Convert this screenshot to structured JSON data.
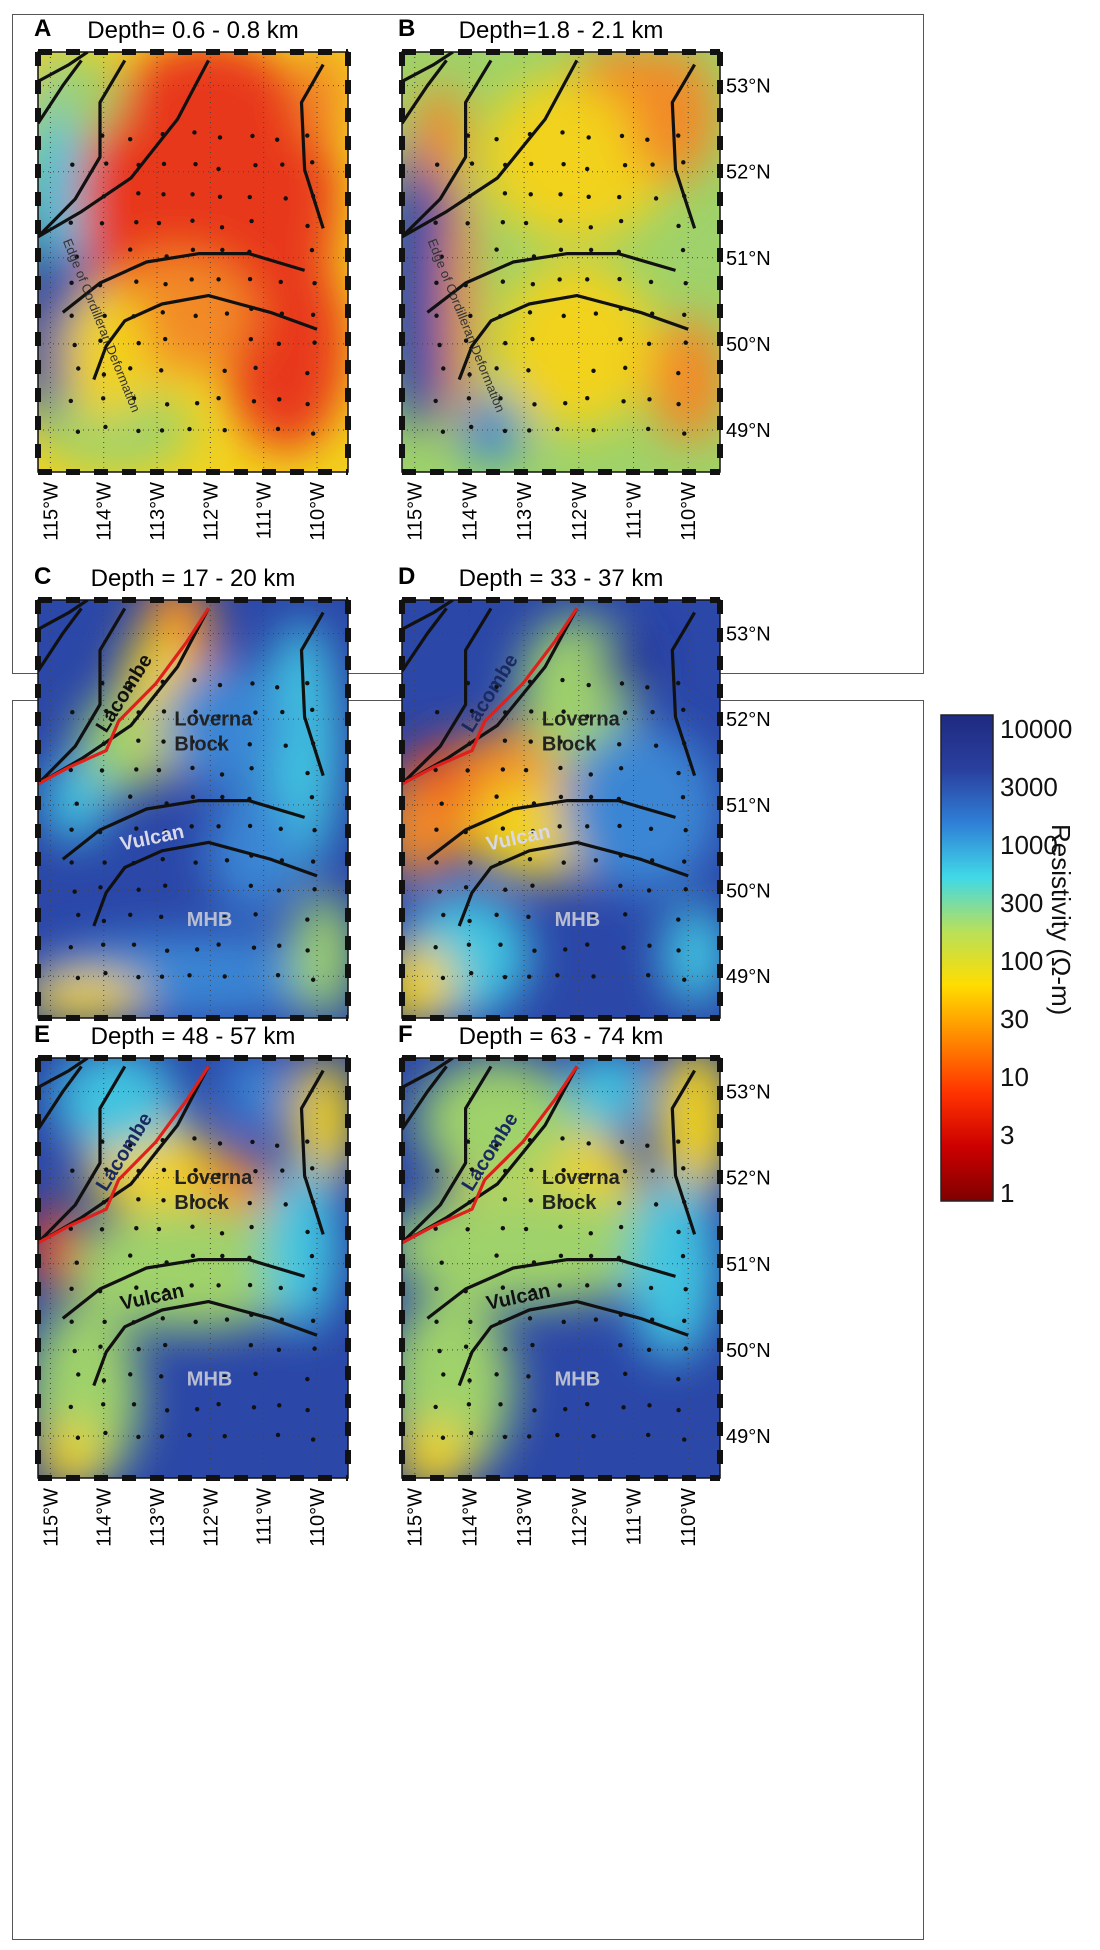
{
  "panels": [
    {
      "id": "A",
      "letter": "A",
      "title": "Depth= 0.6 - 0.8 km",
      "style": "shallow1",
      "annotations": [
        {
          "text": "Edge of Cordilleran Deformation",
          "kind": "edge"
        }
      ]
    },
    {
      "id": "B",
      "letter": "B",
      "title": "Depth=1.8 - 2.1 km",
      "style": "shallow2",
      "annotations": [
        {
          "text": "Edge of Cordilleran Deformation",
          "kind": "edge"
        }
      ]
    },
    {
      "id": "C",
      "letter": "C",
      "title": "Depth = 17 - 20 km",
      "style": "mid1",
      "annotations": [
        {
          "text": "Lacombe",
          "kind": "lacombe"
        },
        {
          "text": "Loverna",
          "kind": "loverna1"
        },
        {
          "text": "Block",
          "kind": "loverna2"
        },
        {
          "text": "Vulcan",
          "kind": "vulcan"
        },
        {
          "text": "MHB",
          "kind": "mhb"
        }
      ]
    },
    {
      "id": "D",
      "letter": "D",
      "title": "Depth = 33 - 37 km",
      "style": "mid2",
      "annotations": [
        {
          "text": "Lacombe",
          "kind": "lacombe"
        },
        {
          "text": "Loverna",
          "kind": "loverna1"
        },
        {
          "text": "Block",
          "kind": "loverna2"
        },
        {
          "text": "Vulcan",
          "kind": "vulcan"
        },
        {
          "text": "MHB",
          "kind": "mhb"
        }
      ]
    },
    {
      "id": "E",
      "letter": "E",
      "title": "Depth = 48 - 57 km",
      "style": "deep1",
      "annotations": [
        {
          "text": "Lacombe",
          "kind": "lacombe"
        },
        {
          "text": "Loverna",
          "kind": "loverna1"
        },
        {
          "text": "Block",
          "kind": "loverna2"
        },
        {
          "text": "Vulcan",
          "kind": "vulcan"
        },
        {
          "text": "MHB",
          "kind": "mhb"
        }
      ]
    },
    {
      "id": "F",
      "letter": "F",
      "title": "Depth = 63 - 74 km",
      "style": "deep2",
      "annotations": [
        {
          "text": "Lacombe",
          "kind": "lacombe"
        },
        {
          "text": "Loverna",
          "kind": "loverna1"
        },
        {
          "text": "Block",
          "kind": "loverna2"
        },
        {
          "text": "Vulcan",
          "kind": "vulcan"
        },
        {
          "text": "MHB",
          "kind": "mhb"
        }
      ]
    }
  ],
  "lat_ticks": [
    "53°N",
    "52°N",
    "51°N",
    "50°N",
    "49°N"
  ],
  "lon_ticks": [
    "115°W",
    "114°W",
    "113°W",
    "112°W",
    "111°W",
    "110°W"
  ],
  "colorbar": {
    "title": "Resistivity (Ω-m)",
    "labels": [
      "10000",
      "3000",
      "1000",
      "300",
      "100",
      "30",
      "10",
      "3",
      "1"
    ],
    "colors": [
      "#7f0000",
      "#cc0000",
      "#ff3300",
      "#ff8800",
      "#ffdd00",
      "#b8e05a",
      "#40d8e8",
      "#2f7fd6",
      "#2a3f9e",
      "#1f2a80"
    ]
  }
}
